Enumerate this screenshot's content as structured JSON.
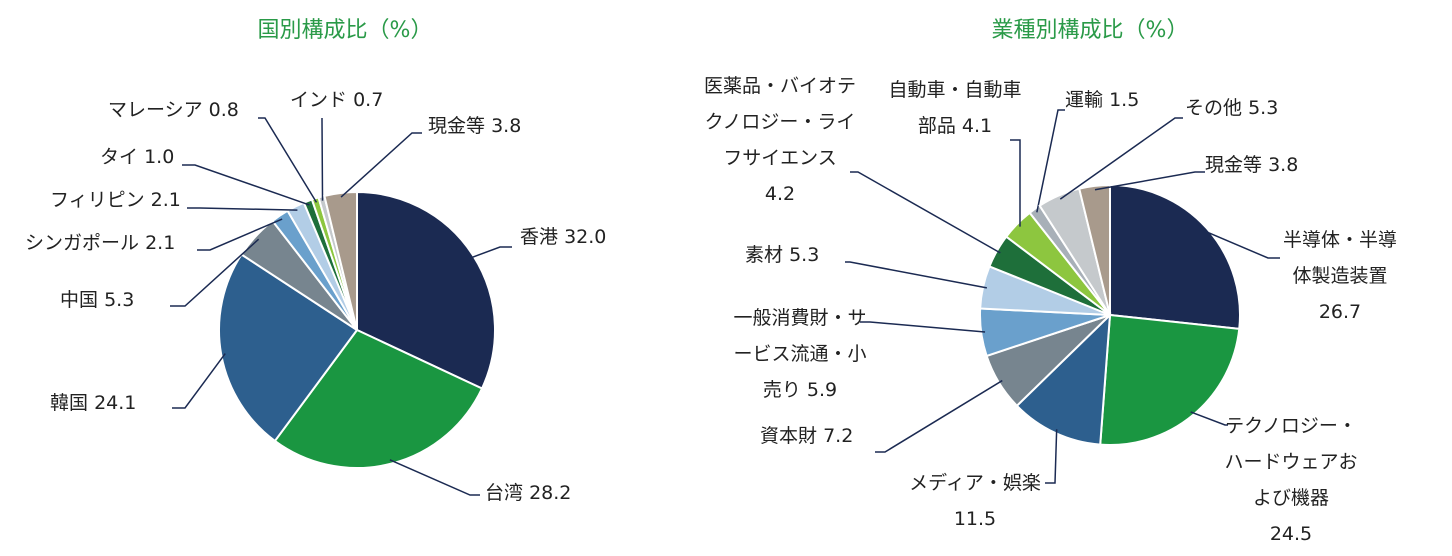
{
  "chart_data": [
    {
      "type": "pie",
      "title": "国別構成比（%）",
      "categories": [
        "香港",
        "台湾",
        "韓国",
        "中国",
        "シンガポール",
        "フィリピン",
        "タイ",
        "マレーシア",
        "インド",
        "現金等"
      ],
      "values": [
        32.0,
        28.2,
        24.1,
        5.3,
        2.1,
        2.1,
        1.0,
        0.8,
        0.7,
        3.8
      ],
      "value_labels": [
        "32.0",
        "28.2",
        "24.1",
        "5.3",
        "2.1",
        "2.1",
        "1.0",
        "0.8",
        "0.7",
        "3.8"
      ],
      "colors": [
        "#1b2a52",
        "#1a9641",
        "#2d5f8e",
        "#77858f",
        "#6aa0cc",
        "#b2cde6",
        "#1e6f3a",
        "#8dc63f",
        "#c5c9cc",
        "#a89a8c"
      ]
    },
    {
      "type": "pie",
      "title": "業種別構成比（%）",
      "categories": [
        "半導体・半導体製造装置",
        "テクノロジー・ハードウェアおよび機器",
        "メディア・娯楽",
        "資本財",
        "一般消費財・サービス流通・小売り",
        "素材",
        "医薬品・バイオテクノロジー・ライフサイエンス",
        "自動車・自動車部品",
        "運輸",
        "その他",
        "現金等"
      ],
      "values": [
        26.7,
        24.5,
        11.5,
        7.2,
        5.9,
        5.3,
        4.2,
        4.1,
        1.5,
        5.3,
        3.8
      ],
      "value_labels": [
        "26.7",
        "24.5",
        "11.5",
        "7.2",
        "5.9",
        "5.3",
        "4.2",
        "4.1",
        "1.5",
        "5.3",
        "3.8"
      ],
      "colors": [
        "#1b2a52",
        "#1a9641",
        "#2d5f8e",
        "#77858f",
        "#6aa0cc",
        "#b2cde6",
        "#1e6f3a",
        "#8dc63f",
        "#a8b0b8",
        "#c5c9cc",
        "#a89a8c"
      ]
    }
  ]
}
